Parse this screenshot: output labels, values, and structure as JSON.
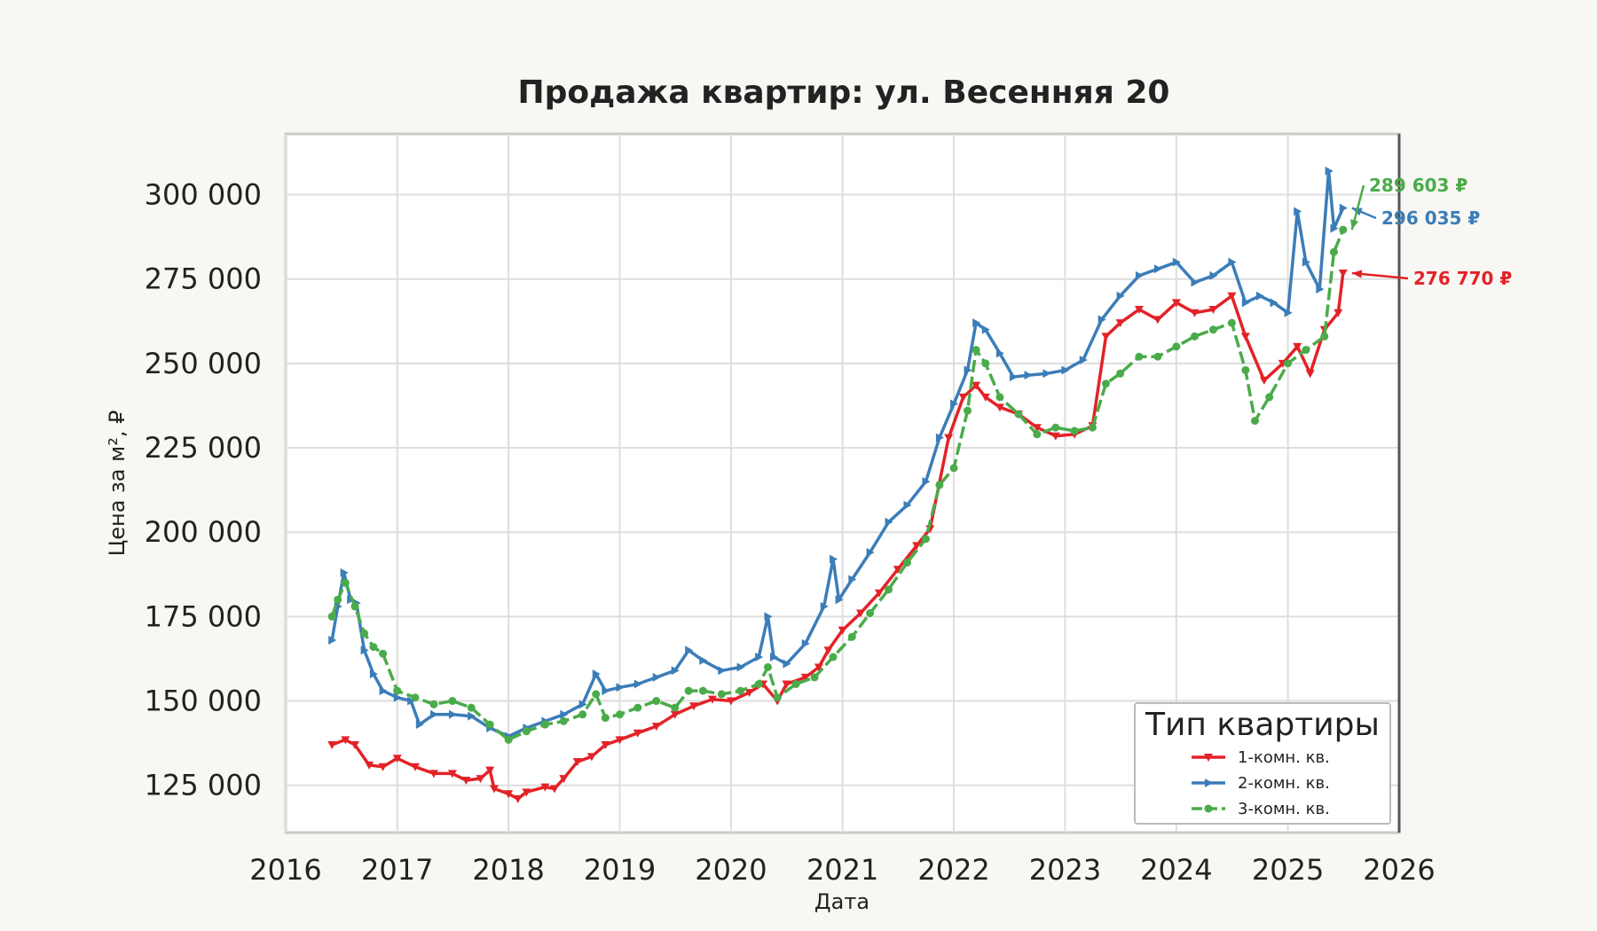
{
  "colors": {
    "background": "#f8f7f3",
    "plot_bg": "#ffffff",
    "grid": "#dedede",
    "series_1": "#e32227",
    "series_2": "#3b7db8",
    "series_3": "#4aab4a"
  },
  "chart_data": {
    "type": "line",
    "title": "Продажа квартир: ул. Весенняя 20",
    "xlabel": "Дата",
    "ylabel": "Цена за м², ₽",
    "xlim": [
      "2016-01-01",
      "2026-01-01"
    ],
    "ylim": [
      111000,
      318000
    ],
    "x_ticks": [
      "2016",
      "2017",
      "2018",
      "2019",
      "2020",
      "2021",
      "2022",
      "2023",
      "2024",
      "2025",
      "2026"
    ],
    "y_ticks": [
      125000,
      150000,
      175000,
      200000,
      225000,
      250000,
      275000,
      300000
    ],
    "y_tick_labels": [
      "125 000",
      "150 000",
      "175 000",
      "200 000",
      "225 000",
      "250 000",
      "275 000",
      "300 000"
    ],
    "grid": true,
    "legend": {
      "title": "Тип квартиры",
      "placement": "lower-right",
      "entries": [
        "1-комн. кв.",
        "2-комн. кв.",
        "3-комн. кв."
      ]
    },
    "series": [
      {
        "name": "1-комн. кв.",
        "color": "#e32227",
        "marker": "triangle-down",
        "line_style": "solid",
        "points": [
          [
            "2016-06-01",
            137000
          ],
          [
            "2016-07-15",
            138500
          ],
          [
            "2016-08-15",
            137000
          ],
          [
            "2016-10-01",
            131000
          ],
          [
            "2016-11-15",
            130500
          ],
          [
            "2017-01-01",
            133000
          ],
          [
            "2017-03-01",
            130500
          ],
          [
            "2017-05-01",
            128500
          ],
          [
            "2017-07-01",
            128500
          ],
          [
            "2017-08-15",
            126500
          ],
          [
            "2017-10-01",
            127000
          ],
          [
            "2017-11-01",
            129500
          ],
          [
            "2017-11-15",
            124000
          ],
          [
            "2018-01-01",
            122500
          ],
          [
            "2018-02-01",
            121000
          ],
          [
            "2018-03-01",
            123000
          ],
          [
            "2018-05-01",
            124500
          ],
          [
            "2018-06-01",
            124000
          ],
          [
            "2018-07-01",
            127000
          ],
          [
            "2018-08-15",
            132000
          ],
          [
            "2018-10-01",
            133500
          ],
          [
            "2018-11-15",
            137000
          ],
          [
            "2019-01-01",
            138500
          ],
          [
            "2019-03-01",
            140500
          ],
          [
            "2019-05-01",
            142500
          ],
          [
            "2019-07-01",
            146000
          ],
          [
            "2019-09-01",
            148500
          ],
          [
            "2019-11-01",
            150500
          ],
          [
            "2020-01-01",
            150000
          ],
          [
            "2020-03-01",
            152500
          ],
          [
            "2020-04-15",
            155000
          ],
          [
            "2020-06-01",
            150000
          ],
          [
            "2020-07-01",
            155000
          ],
          [
            "2020-09-01",
            157000
          ],
          [
            "2020-10-15",
            160000
          ],
          [
            "2020-11-15",
            165000
          ],
          [
            "2021-01-01",
            171000
          ],
          [
            "2021-03-01",
            176000
          ],
          [
            "2021-05-01",
            182000
          ],
          [
            "2021-07-01",
            189000
          ],
          [
            "2021-09-01",
            196000
          ],
          [
            "2021-10-15",
            201000
          ],
          [
            "2021-12-15",
            228000
          ],
          [
            "2022-02-01",
            240000
          ],
          [
            "2022-03-15",
            243500
          ],
          [
            "2022-04-15",
            240000
          ],
          [
            "2022-06-01",
            237000
          ],
          [
            "2022-08-01",
            235000
          ],
          [
            "2022-10-01",
            231000
          ],
          [
            "2022-12-01",
            228500
          ],
          [
            "2023-02-01",
            229000
          ],
          [
            "2023-04-01",
            231500
          ],
          [
            "2023-05-15",
            258000
          ],
          [
            "2023-07-01",
            262000
          ],
          [
            "2023-09-01",
            266000
          ],
          [
            "2023-11-01",
            263000
          ],
          [
            "2024-01-01",
            268000
          ],
          [
            "2024-03-01",
            265000
          ],
          [
            "2024-05-01",
            266000
          ],
          [
            "2024-07-01",
            270000
          ],
          [
            "2024-08-15",
            258000
          ],
          [
            "2024-10-15",
            245000
          ],
          [
            "2024-12-15",
            250000
          ],
          [
            "2025-02-01",
            255000
          ],
          [
            "2025-03-15",
            247000
          ],
          [
            "2025-05-01",
            260000
          ],
          [
            "2025-06-15",
            265000
          ],
          [
            "2025-07-01",
            276770
          ]
        ],
        "last_value_label": "276 770 ₽"
      },
      {
        "name": "2-комн. кв.",
        "color": "#3b7db8",
        "marker": "triangle-right",
        "line_style": "solid",
        "points": [
          [
            "2016-06-01",
            168000
          ],
          [
            "2016-06-20",
            178000
          ],
          [
            "2016-07-10",
            188000
          ],
          [
            "2016-08-01",
            180000
          ],
          [
            "2016-08-20",
            179000
          ],
          [
            "2016-09-15",
            165000
          ],
          [
            "2016-10-15",
            158000
          ],
          [
            "2016-11-15",
            153000
          ],
          [
            "2017-01-01",
            151000
          ],
          [
            "2017-02-15",
            150000
          ],
          [
            "2017-03-15",
            143000
          ],
          [
            "2017-05-01",
            146000
          ],
          [
            "2017-07-01",
            146000
          ],
          [
            "2017-09-01",
            145500
          ],
          [
            "2017-11-01",
            142000
          ],
          [
            "2018-01-01",
            139500
          ],
          [
            "2018-03-01",
            142000
          ],
          [
            "2018-05-01",
            144000
          ],
          [
            "2018-07-01",
            146000
          ],
          [
            "2018-09-01",
            149000
          ],
          [
            "2018-10-15",
            158000
          ],
          [
            "2018-11-15",
            153000
          ],
          [
            "2019-01-01",
            154000
          ],
          [
            "2019-03-01",
            155000
          ],
          [
            "2019-05-01",
            157000
          ],
          [
            "2019-07-01",
            159000
          ],
          [
            "2019-08-15",
            165000
          ],
          [
            "2019-10-01",
            162000
          ],
          [
            "2019-12-01",
            159000
          ],
          [
            "2020-02-01",
            160000
          ],
          [
            "2020-04-01",
            163000
          ],
          [
            "2020-05-01",
            175000
          ],
          [
            "2020-05-20",
            163000
          ],
          [
            "2020-07-01",
            161000
          ],
          [
            "2020-09-01",
            167000
          ],
          [
            "2020-11-01",
            178000
          ],
          [
            "2020-12-01",
            192000
          ],
          [
            "2020-12-20",
            180000
          ],
          [
            "2021-02-01",
            186000
          ],
          [
            "2021-04-01",
            194000
          ],
          [
            "2021-06-01",
            203000
          ],
          [
            "2021-08-01",
            208000
          ],
          [
            "2021-10-01",
            215000
          ],
          [
            "2021-11-15",
            228000
          ],
          [
            "2022-01-01",
            238000
          ],
          [
            "2022-02-15",
            248000
          ],
          [
            "2022-03-15",
            262000
          ],
          [
            "2022-04-15",
            260000
          ],
          [
            "2022-06-01",
            253000
          ],
          [
            "2022-07-15",
            246000
          ],
          [
            "2022-09-01",
            246500
          ],
          [
            "2022-11-01",
            247000
          ],
          [
            "2023-01-01",
            248000
          ],
          [
            "2023-03-01",
            251000
          ],
          [
            "2023-05-01",
            263000
          ],
          [
            "2023-07-01",
            270000
          ],
          [
            "2023-09-01",
            276000
          ],
          [
            "2023-11-01",
            278000
          ],
          [
            "2024-01-01",
            280000
          ],
          [
            "2024-03-01",
            274000
          ],
          [
            "2024-05-01",
            276000
          ],
          [
            "2024-07-01",
            280000
          ],
          [
            "2024-08-15",
            268000
          ],
          [
            "2024-10-01",
            270000
          ],
          [
            "2024-11-15",
            268000
          ],
          [
            "2025-01-01",
            265000
          ],
          [
            "2025-02-01",
            295000
          ],
          [
            "2025-03-01",
            280000
          ],
          [
            "2025-04-15",
            272000
          ],
          [
            "2025-05-15",
            307000
          ],
          [
            "2025-06-01",
            290000
          ],
          [
            "2025-07-01",
            296035
          ]
        ],
        "last_value_label": "296 035 ₽"
      },
      {
        "name": "3-комн. кв.",
        "color": "#4aab4a",
        "marker": "circle",
        "line_style": "dashed",
        "points": [
          [
            "2016-06-01",
            175000
          ],
          [
            "2016-06-20",
            180000
          ],
          [
            "2016-07-15",
            185000
          ],
          [
            "2016-08-15",
            178000
          ],
          [
            "2016-09-15",
            170000
          ],
          [
            "2016-10-15",
            166000
          ],
          [
            "2016-11-15",
            164000
          ],
          [
            "2017-01-01",
            153000
          ],
          [
            "2017-03-01",
            151000
          ],
          [
            "2017-05-01",
            149000
          ],
          [
            "2017-07-01",
            150000
          ],
          [
            "2017-09-01",
            148000
          ],
          [
            "2017-11-01",
            143000
          ],
          [
            "2018-01-01",
            138500
          ],
          [
            "2018-03-01",
            141000
          ],
          [
            "2018-05-01",
            143000
          ],
          [
            "2018-07-01",
            144000
          ],
          [
            "2018-09-01",
            146000
          ],
          [
            "2018-10-15",
            152000
          ],
          [
            "2018-11-15",
            145000
          ],
          [
            "2019-01-01",
            146000
          ],
          [
            "2019-03-01",
            148000
          ],
          [
            "2019-05-01",
            150000
          ],
          [
            "2019-07-01",
            148000
          ],
          [
            "2019-08-15",
            153000
          ],
          [
            "2019-10-01",
            153000
          ],
          [
            "2019-12-01",
            152000
          ],
          [
            "2020-02-01",
            153000
          ],
          [
            "2020-04-01",
            155000
          ],
          [
            "2020-05-01",
            160000
          ],
          [
            "2020-06-01",
            151000
          ],
          [
            "2020-08-01",
            155000
          ],
          [
            "2020-10-01",
            157000
          ],
          [
            "2020-12-01",
            163000
          ],
          [
            "2021-02-01",
            169000
          ],
          [
            "2021-04-01",
            176000
          ],
          [
            "2021-06-01",
            183000
          ],
          [
            "2021-08-01",
            191000
          ],
          [
            "2021-10-01",
            198000
          ],
          [
            "2021-11-15",
            214000
          ],
          [
            "2022-01-01",
            219000
          ],
          [
            "2022-02-15",
            236000
          ],
          [
            "2022-03-15",
            254000
          ],
          [
            "2022-04-15",
            250000
          ],
          [
            "2022-06-01",
            240000
          ],
          [
            "2022-08-01",
            235000
          ],
          [
            "2022-10-01",
            229000
          ],
          [
            "2022-12-01",
            231000
          ],
          [
            "2023-02-01",
            230000
          ],
          [
            "2023-04-01",
            231000
          ],
          [
            "2023-05-15",
            244000
          ],
          [
            "2023-07-01",
            247000
          ],
          [
            "2023-09-01",
            252000
          ],
          [
            "2023-11-01",
            252000
          ],
          [
            "2024-01-01",
            255000
          ],
          [
            "2024-03-01",
            258000
          ],
          [
            "2024-05-01",
            260000
          ],
          [
            "2024-07-01",
            262000
          ],
          [
            "2024-08-15",
            248000
          ],
          [
            "2024-09-15",
            233000
          ],
          [
            "2024-11-01",
            240000
          ],
          [
            "2025-01-01",
            250000
          ],
          [
            "2025-03-01",
            254000
          ],
          [
            "2025-05-01",
            258000
          ],
          [
            "2025-06-01",
            283000
          ],
          [
            "2025-07-01",
            289603
          ]
        ],
        "last_value_label": "289 603 ₽"
      }
    ]
  }
}
